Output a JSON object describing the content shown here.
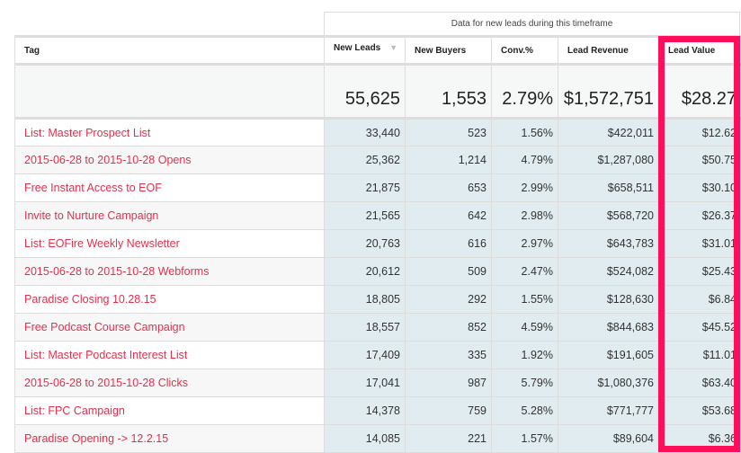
{
  "group_header": "Data for new leads during this timeframe",
  "columns": {
    "tag": "Tag",
    "new_leads": "New Leads",
    "new_buyers": "New Buyers",
    "conv": "Conv.%",
    "lead_revenue": "Lead Revenue",
    "lead_value": "Lead Value"
  },
  "sort_icon": "triangle-down",
  "totals": {
    "new_leads": "55,625",
    "new_buyers": "1,553",
    "conv": "2.79%",
    "lead_revenue": "$1,572,751",
    "lead_value": "$28.27"
  },
  "rows": [
    {
      "tag": "List: Master Prospect List",
      "new_leads": "33,440",
      "new_buyers": "523",
      "conv": "1.56%",
      "lead_revenue": "$422,011",
      "lead_value": "$12.62"
    },
    {
      "tag": "2015-06-28 to 2015-10-28 Opens",
      "new_leads": "25,362",
      "new_buyers": "1,214",
      "conv": "4.79%",
      "lead_revenue": "$1,287,080",
      "lead_value": "$50.75"
    },
    {
      "tag": "Free Instant Access to EOF",
      "new_leads": "21,875",
      "new_buyers": "653",
      "conv": "2.99%",
      "lead_revenue": "$658,511",
      "lead_value": "$30.10"
    },
    {
      "tag": "Invite to Nurture Campaign",
      "new_leads": "21,565",
      "new_buyers": "642",
      "conv": "2.98%",
      "lead_revenue": "$568,720",
      "lead_value": "$26.37"
    },
    {
      "tag": "List: EOFire Weekly Newsletter",
      "new_leads": "20,763",
      "new_buyers": "616",
      "conv": "2.97%",
      "lead_revenue": "$643,783",
      "lead_value": "$31.01"
    },
    {
      "tag": "2015-06-28 to 2015-10-28 Webforms",
      "new_leads": "20,612",
      "new_buyers": "509",
      "conv": "2.47%",
      "lead_revenue": "$524,082",
      "lead_value": "$25.43"
    },
    {
      "tag": "Paradise Closing 10.28.15",
      "new_leads": "18,805",
      "new_buyers": "292",
      "conv": "1.55%",
      "lead_revenue": "$128,630",
      "lead_value": "$6.84"
    },
    {
      "tag": "Free Podcast Course Campaign",
      "new_leads": "18,557",
      "new_buyers": "852",
      "conv": "4.59%",
      "lead_revenue": "$844,683",
      "lead_value": "$45.52"
    },
    {
      "tag": "List: Master Podcast Interest List",
      "new_leads": "17,409",
      "new_buyers": "335",
      "conv": "1.92%",
      "lead_revenue": "$191,605",
      "lead_value": "$11.01"
    },
    {
      "tag": "2015-06-28 to 2015-10-28 Clicks",
      "new_leads": "17,041",
      "new_buyers": "987",
      "conv": "5.79%",
      "lead_revenue": "$1,080,376",
      "lead_value": "$63.40"
    },
    {
      "tag": "List: FPC Campaign",
      "new_leads": "14,378",
      "new_buyers": "759",
      "conv": "5.28%",
      "lead_revenue": "$771,777",
      "lead_value": "$53.68"
    },
    {
      "tag": "Paradise Opening -> 12.2.15",
      "new_leads": "14,085",
      "new_buyers": "221",
      "conv": "1.57%",
      "lead_revenue": "$89,604",
      "lead_value": "$6.36"
    }
  ],
  "highlight_color": "#ff0f5a"
}
